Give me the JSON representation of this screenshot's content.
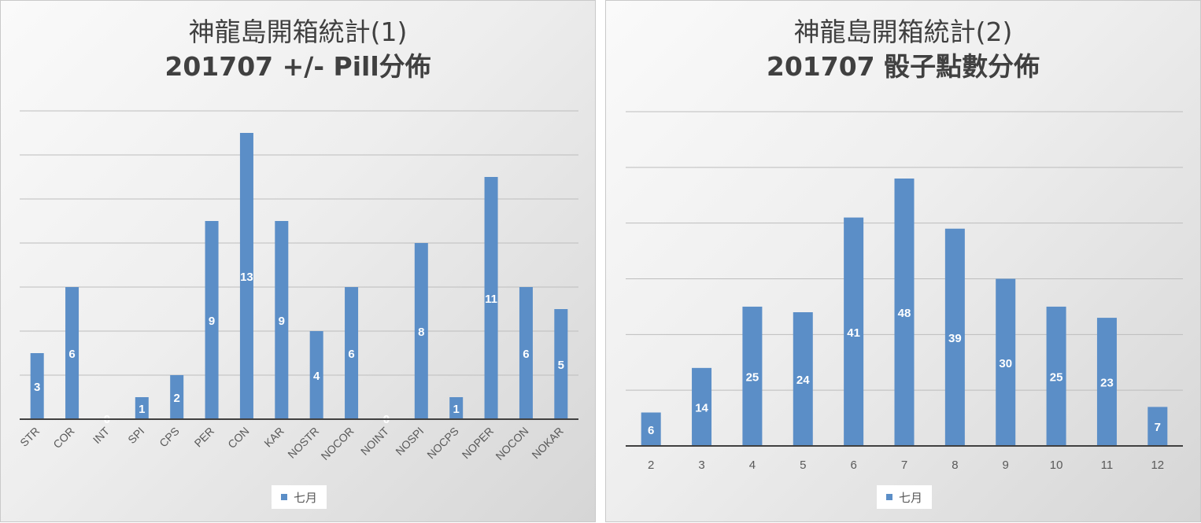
{
  "charts": {
    "left": {
      "title_line1": "神龍島開箱統計(1)",
      "title_line2": "201707 +/- Pill分佈",
      "legend": "七月",
      "chart_data": {
        "type": "bar",
        "title": "神龍島開箱統計(1) 201707 +/- Pill分佈",
        "categories": [
          "STR",
          "COR",
          "INT",
          "SPI",
          "CPS",
          "PER",
          "CON",
          "KAR",
          "NOSTR",
          "NOCOR",
          "NOINT",
          "NOSPI",
          "NOCPS",
          "NOPER",
          "NOCON",
          "NOKAR"
        ],
        "series": [
          {
            "name": "七月",
            "values": [
              3,
              6,
              0,
              1,
              2,
              9,
              13,
              9,
              4,
              6,
              0,
              8,
              1,
              11,
              6,
              5
            ]
          }
        ],
        "ylim": [
          0,
          14
        ],
        "grid": true,
        "data_labels": true,
        "legend_position": "bottom",
        "bar_color": "#5b8ec7"
      }
    },
    "right": {
      "title_line1": "神龍島開箱統計(2)",
      "title_line2": "201707 骰子點數分佈",
      "legend": "七月",
      "chart_data": {
        "type": "bar",
        "title": "神龍島開箱統計(2) 201707 骰子點數分佈",
        "categories": [
          "2",
          "3",
          "4",
          "5",
          "6",
          "7",
          "8",
          "9",
          "10",
          "11",
          "12"
        ],
        "series": [
          {
            "name": "七月",
            "values": [
              6,
              14,
              25,
              24,
              41,
              48,
              39,
              30,
              25,
              23,
              7
            ]
          }
        ],
        "ylim": [
          0,
          60
        ],
        "grid": true,
        "data_labels": true,
        "legend_position": "bottom",
        "bar_color": "#5b8ec7"
      }
    }
  }
}
